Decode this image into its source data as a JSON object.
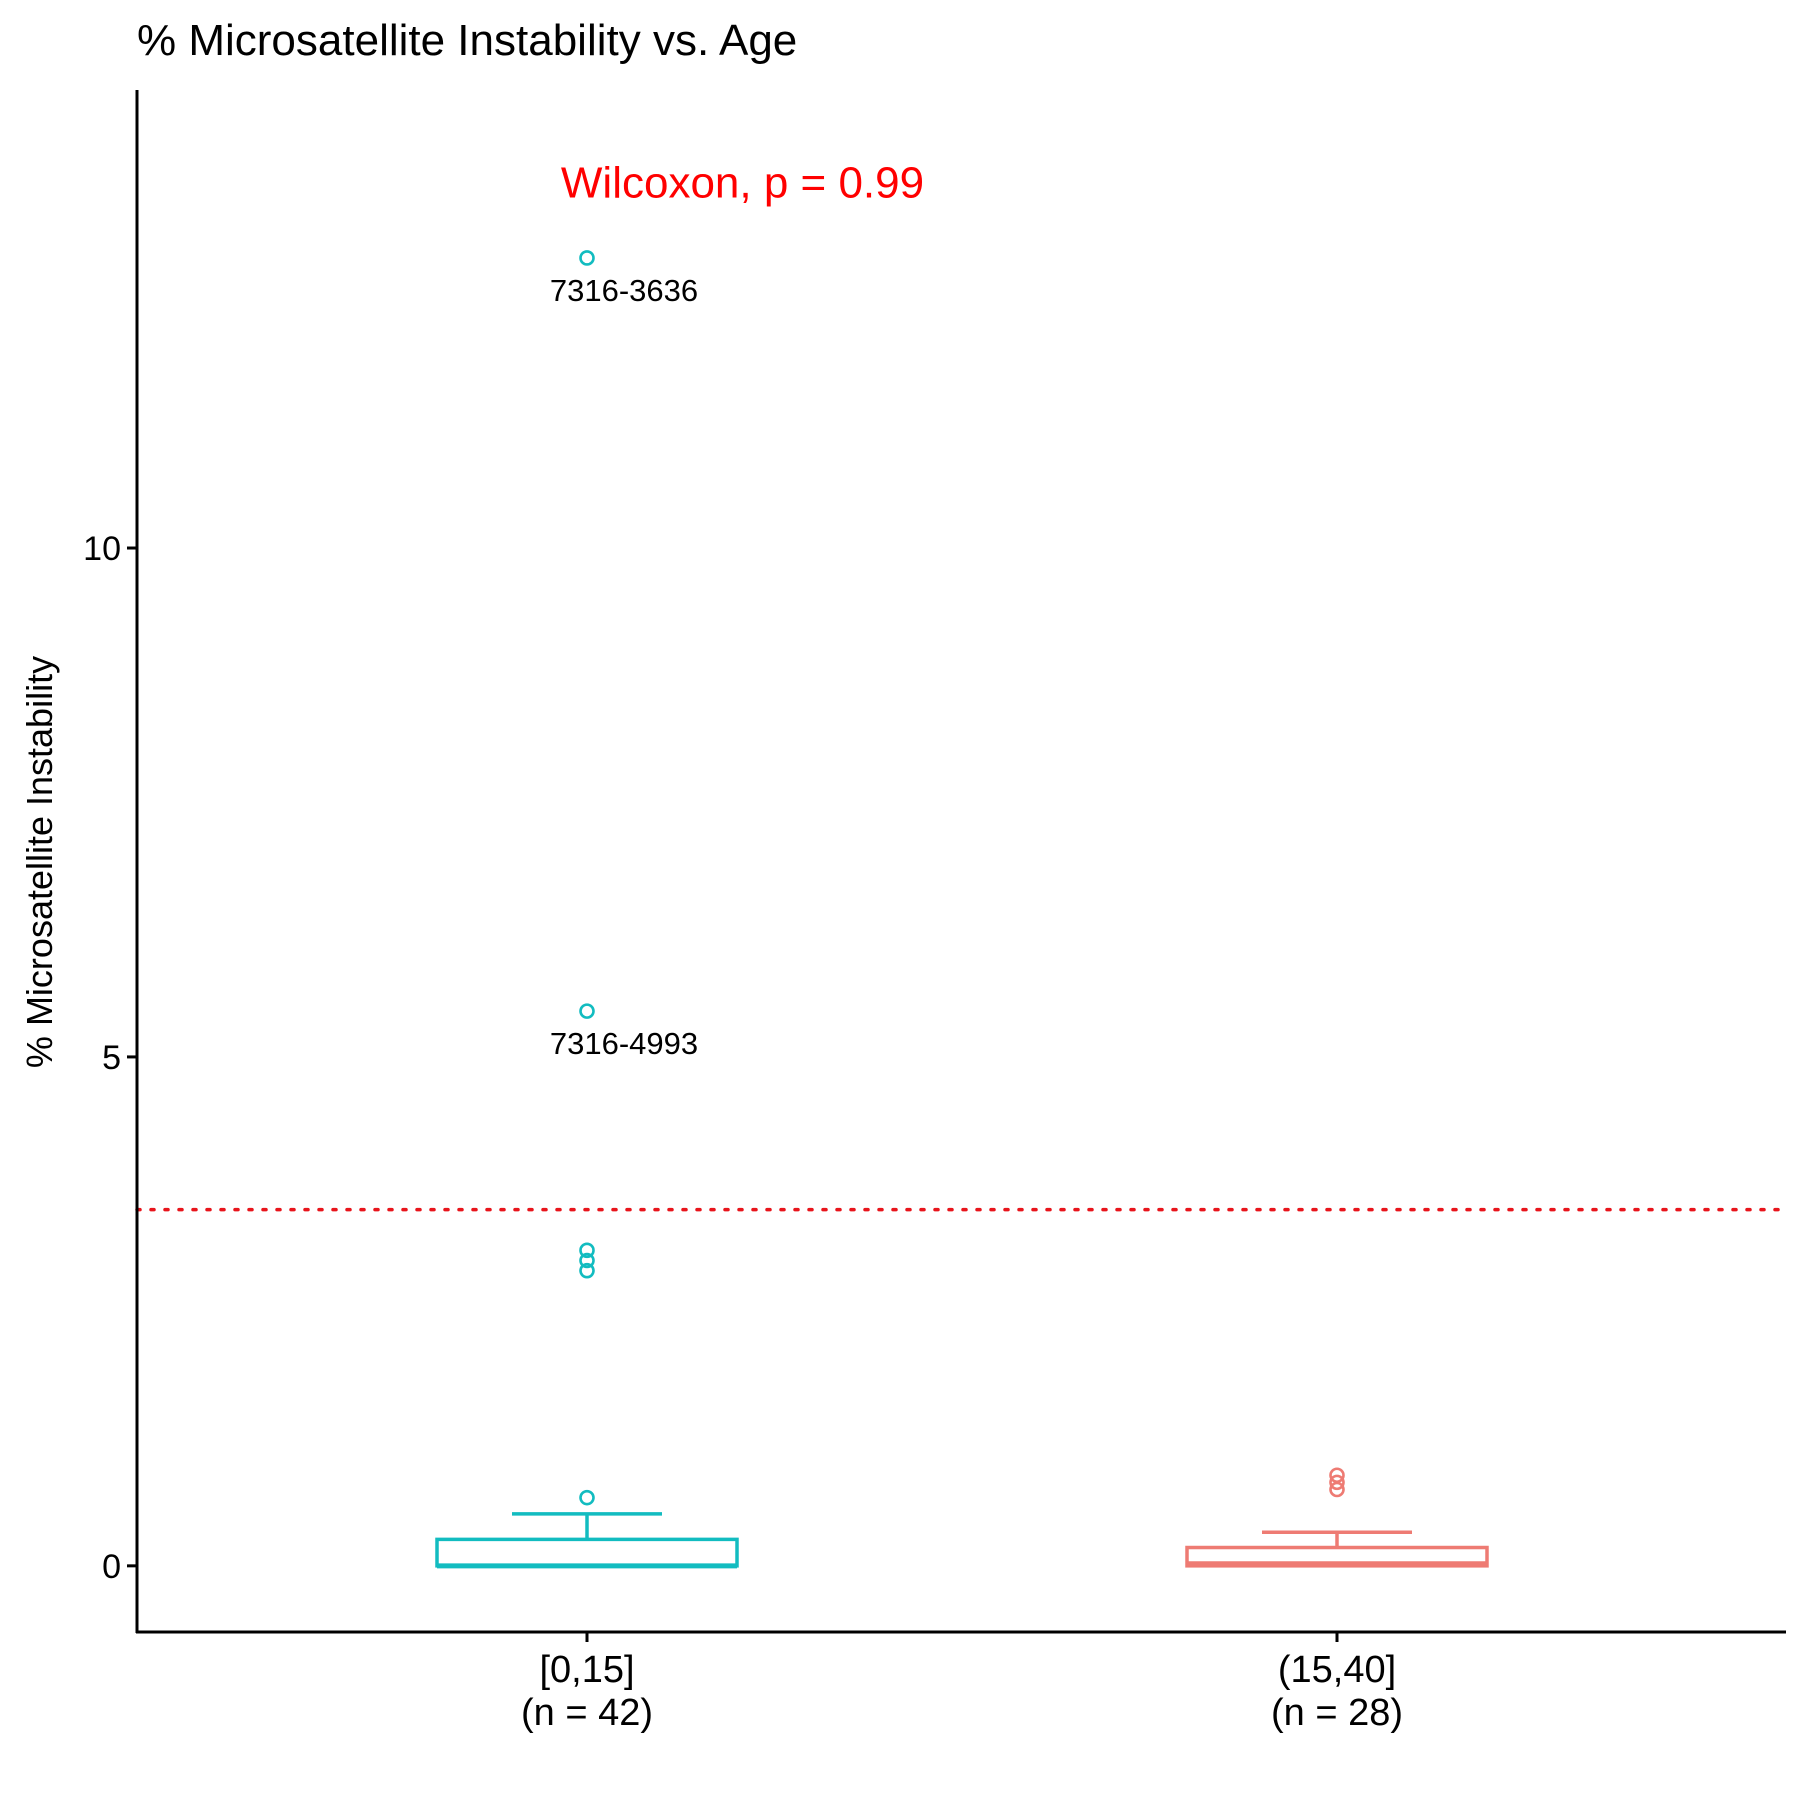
{
  "chart_data": {
    "type": "box",
    "title": "% Microsatellite Instability vs. Age",
    "ylabel": "% Microsatellite Instability",
    "xlabel": "",
    "ylim": [
      -0.65,
      14.5
    ],
    "yticks": [
      0,
      5,
      10
    ],
    "grid": false,
    "legend": "none",
    "threshold": {
      "value": 3.5,
      "color": "#e8141b",
      "style": "dotted"
    },
    "annotation": {
      "text": "Wilcoxon, p = 0.99",
      "color": "#ff0000",
      "x_category": 0.5,
      "y": 12.5
    },
    "categories": [
      {
        "label": "[0,15]",
        "n_label": "(n = 42)",
        "color": "#12bcc0"
      },
      {
        "label": "(15,40]",
        "n_label": "(n = 28)",
        "color": "#ee7b73"
      }
    ],
    "series": [
      {
        "category": "[0,15]",
        "q1": 0.0,
        "median": 0.0,
        "q3": 0.26,
        "whisker_low": 0.0,
        "whisker_high": 0.51,
        "outliers": [
          0.67,
          2.9,
          3.0,
          3.1,
          5.45,
          12.85
        ],
        "point_labels": [
          {
            "value": 12.85,
            "text": "7316-3636"
          },
          {
            "value": 5.45,
            "text": "7316-4993"
          }
        ]
      },
      {
        "category": "(15,40]",
        "q1": 0.0,
        "median": 0.02,
        "q3": 0.18,
        "whisker_low": 0.0,
        "whisker_high": 0.33,
        "outliers": [
          0.75,
          0.82,
          0.89
        ],
        "point_labels": []
      }
    ]
  }
}
